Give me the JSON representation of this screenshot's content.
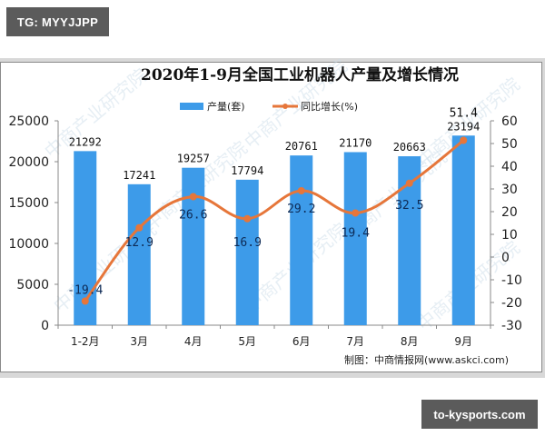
{
  "badges": {
    "top_left": "TG: MYYJJPP",
    "bottom_right": "to-kysports.com"
  },
  "watermark": "中商产业研究院",
  "chart_data": {
    "type": "bar+line",
    "title": "2020年1-9月全国工业机器人产量及增长情况",
    "categories": [
      "1-2月",
      "3月",
      "4月",
      "5月",
      "6月",
      "7月",
      "8月",
      "9月"
    ],
    "series": [
      {
        "name": "产量(套)",
        "type": "bar",
        "axis": "left",
        "color": "#3d9be9",
        "values": [
          21292,
          17241,
          19257,
          17794,
          20761,
          21170,
          20663,
          23194
        ]
      },
      {
        "name": "同比增长(%)",
        "type": "line",
        "axis": "right",
        "color": "#e6763a",
        "values": [
          -19.4,
          12.9,
          26.6,
          16.9,
          29.2,
          19.4,
          32.5,
          51.4
        ]
      }
    ],
    "left_axis": {
      "ylim": [
        0,
        25000
      ],
      "ticks": [
        "0",
        "5000",
        "10000",
        "15000",
        "20000",
        "25000"
      ]
    },
    "right_axis": {
      "ylim": [
        -30,
        60
      ],
      "ticks": [
        "-30",
        "-20",
        "-10",
        "0",
        "10",
        "20",
        "30",
        "40",
        "50",
        "60"
      ]
    },
    "legend": {
      "position": "top",
      "labels": [
        "产量(套)",
        "同比增长(%)"
      ]
    },
    "grid": false,
    "source": "制图：中商情报网(www.askci.com)"
  }
}
